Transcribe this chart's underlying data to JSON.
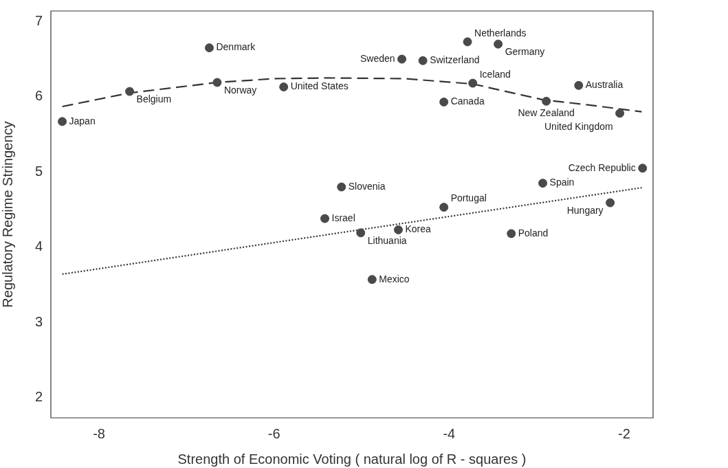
{
  "chart_data": {
    "type": "scatter",
    "xlabel": "Strength of Economic Voting ( natural log of R - squares )",
    "ylabel": "Regulatory Regime Stringency",
    "xlim": [
      -8.55,
      -1.67
    ],
    "ylim": [
      1.73,
      7.14
    ],
    "xticks": [
      -8,
      -6,
      -4,
      -2
    ],
    "yticks": [
      2,
      3,
      4,
      5,
      6,
      7
    ],
    "grid": false,
    "legend": false,
    "marker": "circle",
    "series": [
      {
        "color": "#4a4a4a",
        "x": [
          -8.42,
          -7.65,
          -6.74,
          -6.65,
          -5.89,
          -5.23,
          -5.42,
          -5.01,
          -4.88,
          -4.58,
          -4.54,
          -4.3,
          -3.79,
          -3.44,
          -3.73,
          -4.06,
          -4.06,
          -3.29,
          -2.93,
          -2.89,
          -2.52,
          -2.05,
          -2.16,
          -1.79
        ],
        "values": [
          5.67,
          6.07,
          6.65,
          6.19,
          6.13,
          4.8,
          4.38,
          4.19,
          3.57,
          4.23,
          6.5,
          6.48,
          6.73,
          6.7,
          6.18,
          5.93,
          4.53,
          4.18,
          4.85,
          5.94,
          6.15,
          5.78,
          4.59,
          5.05
        ]
      },
      {
        "type": "line",
        "color": "#333333",
        "line_style": "dashed",
        "marker": "none",
        "x": [
          -8.42,
          -7.65,
          -6.65,
          -6.0,
          -5.4,
          -4.5,
          -3.73,
          -2.93,
          -2.4,
          -1.8
        ],
        "values": [
          5.87,
          6.05,
          6.19,
          6.24,
          6.25,
          6.24,
          6.17,
          5.96,
          5.89,
          5.8
        ]
      },
      {
        "type": "line",
        "color": "#333333",
        "line_style": "dotted",
        "marker": "none",
        "x": [
          -8.42,
          -1.8
        ],
        "values": [
          3.64,
          4.79
        ]
      }
    ],
    "annotations": [
      {
        "text": "Japan",
        "x": -8.42,
        "y": 5.67
      },
      {
        "text": "Belgium",
        "x": -7.65,
        "y": 6.07
      },
      {
        "text": "Denmark",
        "x": -6.74,
        "y": 6.65
      },
      {
        "text": "Norway",
        "x": -6.65,
        "y": 6.19
      },
      {
        "text": "United States",
        "x": -5.89,
        "y": 6.13
      },
      {
        "text": "Slovenia",
        "x": -5.23,
        "y": 4.8
      },
      {
        "text": "Israel",
        "x": -5.42,
        "y": 4.38
      },
      {
        "text": "Lithuania",
        "x": -5.01,
        "y": 4.19
      },
      {
        "text": "Mexico",
        "x": -4.88,
        "y": 3.57
      },
      {
        "text": "Korea",
        "x": -4.58,
        "y": 4.23
      },
      {
        "text": "Sweden",
        "x": -4.54,
        "y": 6.5
      },
      {
        "text": "Switzerland",
        "x": -4.3,
        "y": 6.48
      },
      {
        "text": "Netherlands",
        "x": -3.79,
        "y": 6.73
      },
      {
        "text": "Germany",
        "x": -3.44,
        "y": 6.7
      },
      {
        "text": "Iceland",
        "x": -3.73,
        "y": 6.18
      },
      {
        "text": "Canada",
        "x": -4.06,
        "y": 5.93
      },
      {
        "text": "Portugal",
        "x": -4.06,
        "y": 4.53
      },
      {
        "text": "Poland",
        "x": -3.29,
        "y": 4.18
      },
      {
        "text": "Spain",
        "x": -2.93,
        "y": 4.85
      },
      {
        "text": "New Zealand",
        "x": -2.89,
        "y": 5.94
      },
      {
        "text": "Australia",
        "x": -2.52,
        "y": 6.15
      },
      {
        "text": "United Kingdom",
        "x": -2.05,
        "y": 5.78
      },
      {
        "text": "Hungary",
        "x": -2.16,
        "y": 4.59
      },
      {
        "text": "Czech Republic",
        "x": -1.79,
        "y": 5.05
      }
    ]
  }
}
